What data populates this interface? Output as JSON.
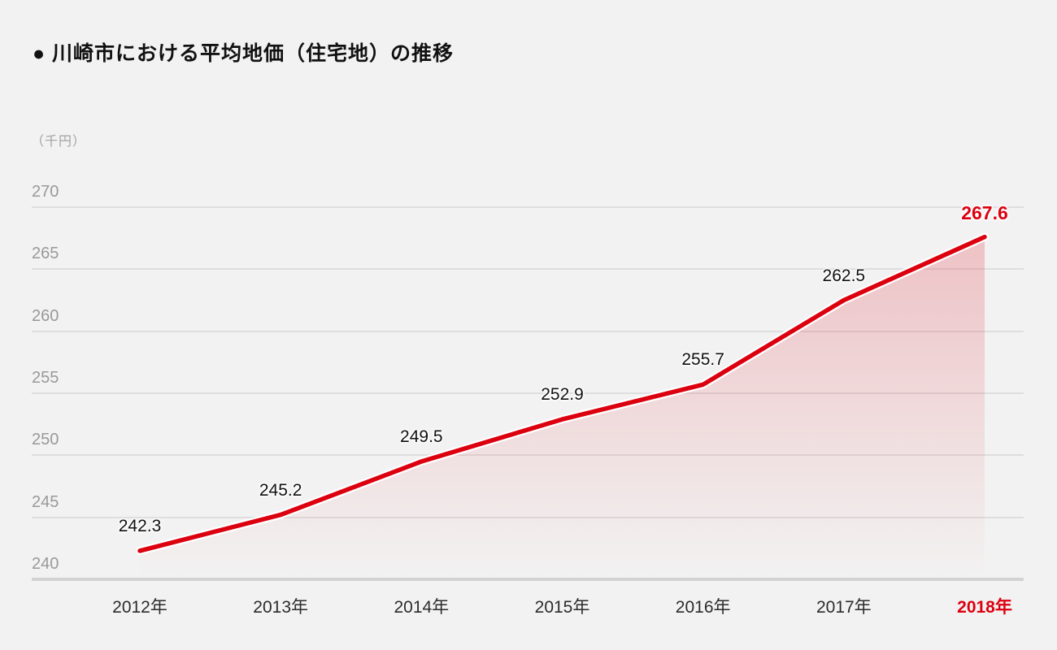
{
  "title": "● 川崎市における平均地価（住宅地）の推移",
  "unit_label": "（千円）",
  "chart_data": {
    "type": "area",
    "title": "川崎市における平均地価（住宅地）の推移",
    "ylabel": "千円",
    "categories": [
      "2012年",
      "2013年",
      "2014年",
      "2015年",
      "2016年",
      "2017年",
      "2018年"
    ],
    "values": [
      242.3,
      245.2,
      249.5,
      252.9,
      255.7,
      262.5,
      267.6
    ],
    "data_labels": [
      "242.3",
      "245.2",
      "249.5",
      "252.9",
      "255.7",
      "262.5",
      "267.6"
    ],
    "yticks": [
      270,
      265,
      260,
      255,
      250,
      245,
      240
    ],
    "ylim": [
      240,
      270
    ],
    "grid": "horizontal",
    "legend": "none",
    "highlight_last_point": true
  },
  "colors": {
    "background": "#f2f2f2",
    "accent_red": "#dc000f",
    "gridline": "#dedede",
    "axis_line": "#d2d2d2",
    "ytick_text": "#999999",
    "xtick_text": "#2b2b2b",
    "data_label_text": "#111111",
    "fill_top": "rgba(220,0,16,0.20)",
    "fill_bottom": "rgba(220,0,16,0)"
  }
}
